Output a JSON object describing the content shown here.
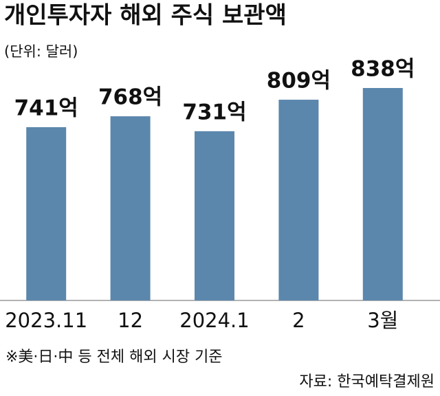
{
  "chart_data": {
    "type": "bar",
    "title": "개인투자자 해외 주식 보관액",
    "subtitle": "(단위: 달러)",
    "categories": [
      "2023.11",
      "12",
      "2024.1",
      "2",
      "3월"
    ],
    "values": [
      741,
      768,
      731,
      809,
      838
    ],
    "value_labels": [
      "741억",
      "768억",
      "731억",
      "809억",
      "838억"
    ],
    "color": "#5b87ad",
    "ylim": [
      312,
      838
    ],
    "footnote": "※美·日·中 등 전체 해외 시장 기준",
    "source": "자료: 한국예탁결제원"
  }
}
